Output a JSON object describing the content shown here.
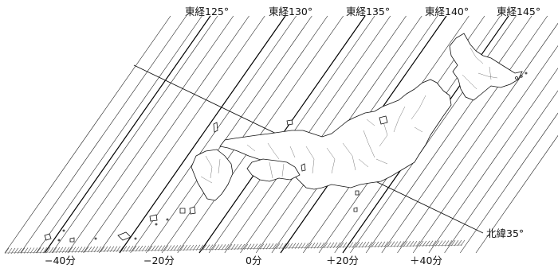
{
  "meridian_labels": [
    {
      "id": "e125",
      "text": "東経125°"
    },
    {
      "id": "e130",
      "text": "東経130°"
    },
    {
      "id": "e135",
      "text": "東経135°"
    },
    {
      "id": "e140",
      "text": "東経140°"
    },
    {
      "id": "e145",
      "text": "東経145°"
    }
  ],
  "time_offset_labels": [
    {
      "id": "m40",
      "text": "−40分"
    },
    {
      "id": "m20",
      "text": "−20分"
    },
    {
      "id": "zero",
      "text": "0分"
    },
    {
      "id": "p20",
      "text": "＋20分"
    },
    {
      "id": "p40",
      "text": "＋40分"
    }
  ],
  "parallel_label": "北緯35°"
}
